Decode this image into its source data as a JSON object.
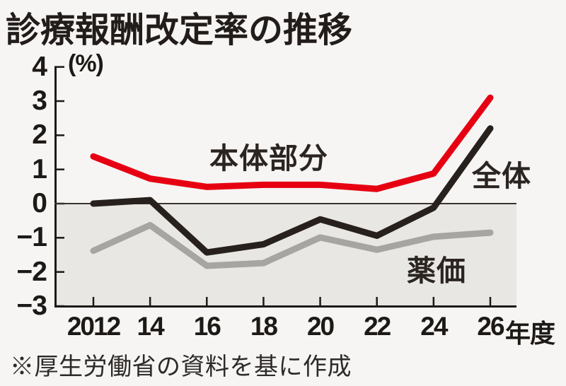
{
  "page": {
    "background_color": "#f6f5f3"
  },
  "title": {
    "text": "診療報酬改定率の推移"
  },
  "footnote": {
    "text": "※厚生労働省の資料を基に作成"
  },
  "chart_data": {
    "type": "line",
    "title": "診療報酬改定率の推移",
    "unit_label": "(%)",
    "x_axis_suffix": "年度",
    "categories": [
      "2012",
      "14",
      "16",
      "18",
      "20",
      "22",
      "24",
      "26"
    ],
    "x_values": [
      2012,
      2014,
      2016,
      2018,
      2020,
      2022,
      2024,
      2026
    ],
    "ylim": [
      -3,
      4
    ],
    "y_tick_values": [
      4,
      3,
      2,
      1,
      0,
      -1,
      -2,
      -3
    ],
    "y_tick_labels": [
      "4",
      "3",
      "2",
      "1",
      "0",
      "−1",
      "−2",
      "−3"
    ],
    "grid": false,
    "legend_position": "inline-annotations",
    "negative_region_shaded": true,
    "series": [
      {
        "name": "本体部分",
        "color": "#e60012",
        "values": [
          1.38,
          0.73,
          0.49,
          0.55,
          0.55,
          0.43,
          0.88,
          3.1
        ]
      },
      {
        "name": "全体",
        "color": "#27201c",
        "values": [
          0.0,
          0.1,
          -1.43,
          -1.19,
          -0.46,
          -0.94,
          -0.12,
          2.2
        ]
      },
      {
        "name": "薬価",
        "color": "#a7a5a2",
        "values": [
          -1.38,
          -0.63,
          -1.82,
          -1.74,
          -0.99,
          -1.35,
          -0.97,
          -0.85
        ]
      }
    ],
    "colors": {
      "shade_below_zero": "#e8e7e4",
      "axis": "#1d1916",
      "zero_line": "#3a3532"
    }
  }
}
